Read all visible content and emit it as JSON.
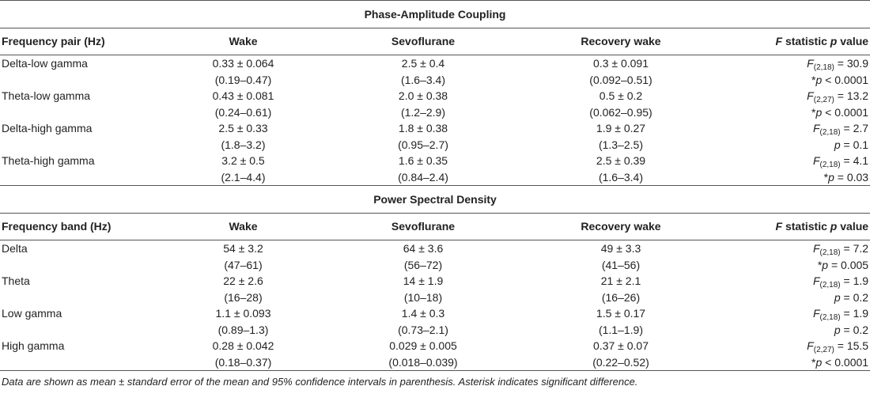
{
  "pac": {
    "title": "Phase-Amplitude Coupling",
    "headers": [
      "Frequency pair (Hz)",
      "Wake",
      "Sevoflurane",
      "Recovery wake",
      "F statistic p value"
    ],
    "rows": [
      {
        "label": "Delta-low gamma",
        "wake": {
          "mean": "0.33 ± 0.064",
          "ci": "(0.19–0.47)"
        },
        "sevo": {
          "mean": "2.5 ± 0.4",
          "ci": "(1.6–3.4)"
        },
        "recovery": {
          "mean": "0.3 ± 0.091",
          "ci": "(0.092–0.51)"
        },
        "f_sub": "(2,18)",
        "f_val": " = 30.9",
        "p_pre": "*",
        "p_val": " < 0.0001"
      },
      {
        "label": "Theta-low gamma",
        "wake": {
          "mean": "0.43 ± 0.081",
          "ci": "(0.24–0.61)"
        },
        "sevo": {
          "mean": "2.0 ± 0.38",
          "ci": "(1.2–2.9)"
        },
        "recovery": {
          "mean": "0.5 ± 0.2",
          "ci": "(0.062–0.95)"
        },
        "f_sub": "(2,27)",
        "f_val": " = 13.2",
        "p_pre": "*",
        "p_val": " < 0.0001"
      },
      {
        "label": "Delta-high gamma",
        "wake": {
          "mean": "2.5 ± 0.33",
          "ci": "(1.8–3.2)"
        },
        "sevo": {
          "mean": "1.8 ± 0.38",
          "ci": "(0.95–2.7)"
        },
        "recovery": {
          "mean": "1.9 ± 0.27",
          "ci": "(1.3–2.5)"
        },
        "f_sub": "(2,18)",
        "f_val": " = 2.7",
        "p_pre": "",
        "p_val": " = 0.1"
      },
      {
        "label": "Theta-high gamma",
        "wake": {
          "mean": "3.2 ± 0.5",
          "ci": "(2.1–4.4)"
        },
        "sevo": {
          "mean": "1.6 ± 0.35",
          "ci": "(0.84–2.4)"
        },
        "recovery": {
          "mean": "2.5 ± 0.39",
          "ci": "(1.6–3.4)"
        },
        "f_sub": "(2,18)",
        "f_val": " = 4.1",
        "p_pre": "*",
        "p_val": " = 0.03"
      }
    ]
  },
  "psd": {
    "title": "Power Spectral Density",
    "headers": [
      "Frequency band (Hz)",
      "Wake",
      "Sevoflurane",
      "Recovery wake",
      "F statistic p value"
    ],
    "rows": [
      {
        "label": "Delta",
        "wake": {
          "mean": "54 ± 3.2",
          "ci": "(47–61)"
        },
        "sevo": {
          "mean": "64 ± 3.6",
          "ci": "(56–72)"
        },
        "recovery": {
          "mean": "49 ± 3.3",
          "ci": "(41–56)"
        },
        "f_sub": "(2,18)",
        "f_val": " = 7.2",
        "p_pre": "*",
        "p_val": " = 0.005"
      },
      {
        "label": "Theta",
        "wake": {
          "mean": "22 ± 2.6",
          "ci": "(16–28)"
        },
        "sevo": {
          "mean": "14 ± 1.9",
          "ci": "(10–18)"
        },
        "recovery": {
          "mean": "21 ± 2.1",
          "ci": "(16–26)"
        },
        "f_sub": "(2,18)",
        "f_val": " = 1.9",
        "p_pre": "",
        "p_val": " = 0.2"
      },
      {
        "label": "Low gamma",
        "wake": {
          "mean": "1.1 ± 0.093",
          "ci": "(0.89–1.3)"
        },
        "sevo": {
          "mean": "1.4 ± 0.3",
          "ci": "(0.73–2.1)"
        },
        "recovery": {
          "mean": "1.5 ± 0.17",
          "ci": "(1.1–1.9)"
        },
        "f_sub": "(2,18)",
        "f_val": " = 1.9",
        "p_pre": "",
        "p_val": " = 0.2"
      },
      {
        "label": "High gamma",
        "wake": {
          "mean": "0.28 ± 0.042",
          "ci": "(0.18–0.37)"
        },
        "sevo": {
          "mean": "0.029 ± 0.005",
          "ci": "(0.018–0.039)"
        },
        "recovery": {
          "mean": "0.37 ± 0.07",
          "ci": "(0.22–0.52)"
        },
        "f_sub": "(2,27)",
        "f_val": " = 15.5",
        "p_pre": "*",
        "p_val": " < 0.0001"
      }
    ]
  },
  "footnote": "Data are shown as mean ± standard error of the mean and 95% confidence intervals in parenthesis. Asterisk indicates significant difference."
}
